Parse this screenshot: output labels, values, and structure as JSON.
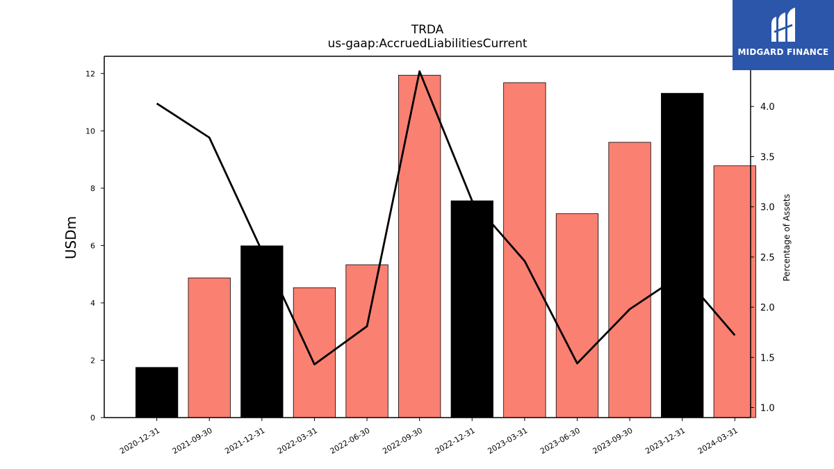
{
  "logo": {
    "brand": "MIDGARD FINANCE",
    "icon": "midgard-m-logo-icon"
  },
  "chart_data": {
    "type": "bar",
    "title": "TRDA",
    "subtitle": "us-gaap:AccruedLiabilitiesCurrent",
    "ylabel": "USDm",
    "y2label": "Percentage of Assets",
    "categories": [
      "2020-12-31",
      "2021-09-30",
      "2021-12-31",
      "2022-03-31",
      "2022-06-30",
      "2022-09-30",
      "2022-12-31",
      "2023-03-31",
      "2023-06-30",
      "2023-09-30",
      "2023-12-31",
      "2024-03-31"
    ],
    "series": [
      {
        "type": "bar",
        "axis": "left",
        "values": [
          1.75,
          4.87,
          5.99,
          4.53,
          5.33,
          11.94,
          7.56,
          11.68,
          7.11,
          9.6,
          11.31,
          8.78
        ]
      },
      {
        "type": "line",
        "axis": "right",
        "values": [
          4.03,
          3.69,
          2.56,
          1.43,
          1.81,
          4.35,
          3.06,
          2.46,
          1.44,
          1.98,
          2.33,
          1.72
        ]
      }
    ],
    "bar_colors": [
      "#000000",
      "#fa8072",
      "#000000",
      "#fa8072",
      "#fa8072",
      "#fa8072",
      "#000000",
      "#fa8072",
      "#fa8072",
      "#fa8072",
      "#000000",
      "#fa8072"
    ],
    "line_color": "#000000",
    "ylim": [
      0,
      12.6
    ],
    "y_ticks": [
      0,
      2,
      4,
      6,
      8,
      10,
      12
    ],
    "y2lim": [
      0.9,
      4.5
    ],
    "y2_ticks": [
      "1.0",
      "1.5",
      "2.0",
      "2.5",
      "3.0",
      "3.5",
      "4.0"
    ],
    "grid": false,
    "legend": "none"
  }
}
